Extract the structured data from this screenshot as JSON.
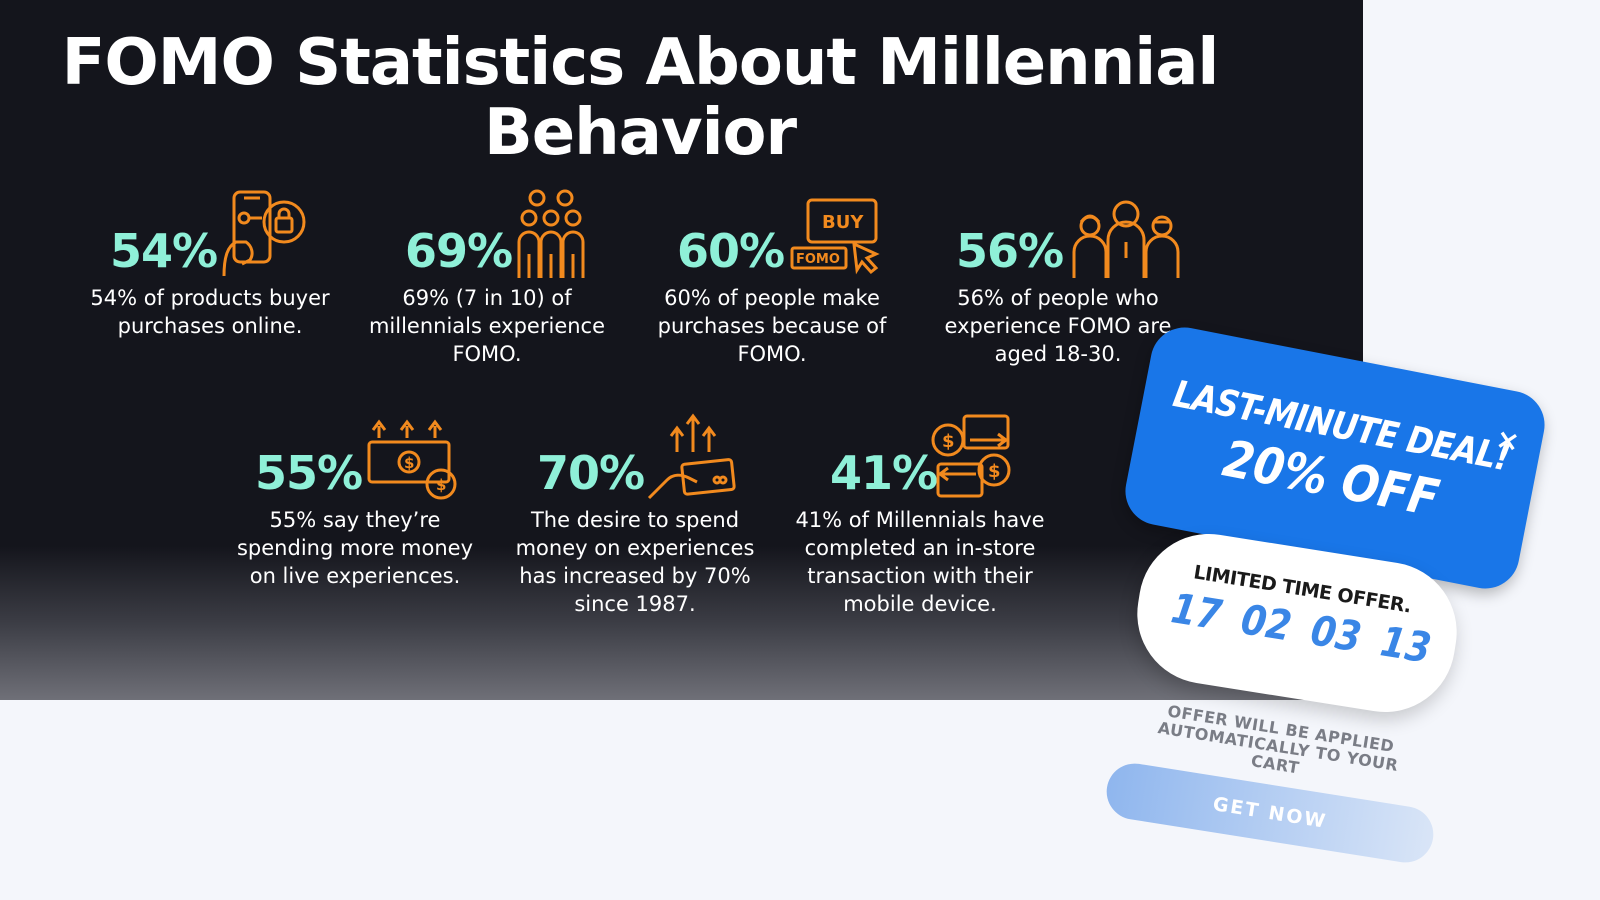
{
  "infographic": {
    "title": "FOMO Statistics About Millennial Behavior",
    "stats": [
      {
        "value": "54%",
        "description": "54% of products buyer purchases online.",
        "icon": "phone-shopping-bag-icon"
      },
      {
        "value": "69%",
        "description": "69% (7 in 10) of millennials experience FOMO.",
        "icon": "group-of-people-icon"
      },
      {
        "value": "60%",
        "description": "60% of people make purchases because of FOMO.",
        "icon": "buy-fomo-click-icon"
      },
      {
        "value": "56%",
        "description": "56% of people who experience FOMO are aged 18-30.",
        "icon": "three-people-icon"
      },
      {
        "value": "55%",
        "description": "55% say they’re spending more money on live experiences.",
        "icon": "cash-rising-icon"
      },
      {
        "value": "70%",
        "description": "The desire to spend money on experiences has increased by 70% since 1987.",
        "icon": "hand-card-growth-icon"
      },
      {
        "value": "41%",
        "description": "41% of Millennials have completed an in-store transaction with their mobile device.",
        "icon": "money-exchange-icon"
      }
    ],
    "colors": {
      "background": "#14151c",
      "accent": "#8ff0d8",
      "icon": "#f28a1e",
      "text": "#ffffff"
    }
  },
  "popup": {
    "deal_title": "LAST-MINUTE DEAL!",
    "discount": "20% OFF",
    "close_label": "×",
    "timer_label": "LIMITED TIME OFFER.",
    "timer": [
      "17",
      "02",
      "03",
      "13"
    ],
    "note": "OFFER WILL BE APPLIED AUTOMATICALLY TO YOUR CART",
    "button_label": "GET NOW",
    "colors": {
      "card": "#1976e8",
      "digits": "#3a86e6"
    }
  }
}
